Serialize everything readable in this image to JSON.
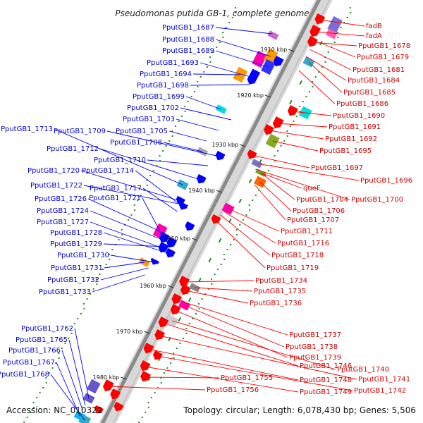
{
  "title": "Pseudomonas putida GB-1, complete genome",
  "footer": {
    "accession": "Accession: NC_010322",
    "topology": "Topology: circular; Length: 6,078,430 bp; Genes: 5,506"
  },
  "ticks": [
    "1910 kbp",
    "1920 kbp",
    "1930 kbp",
    "1940 kbp",
    "1950 kbp",
    "1960 kbp",
    "1970 kbp",
    "1980 kbp"
  ],
  "left_labels": [
    "PputGB1_1687",
    "PputGB1_1688",
    "PputGB1_1689",
    "PputGB1_1693",
    "PputGB1_1694",
    "PputGB1_1698",
    "PputGB1_1699",
    "PputGB1_1702",
    "PputGB1_1703",
    "PputGB1_1713",
    "PputGB1_1709",
    "PputGB1_1705",
    "PputGB1_1708",
    "PputGB1_1712",
    "PputGB1_1710",
    "PputGB1_1720",
    "PputGB1_1714",
    "PputGB1_1722",
    "PputGB1_1717",
    "PputGB1_1726",
    "PputGB1_1721",
    "PputGB1_1724",
    "PputGB1_1727",
    "PputGB1_1728",
    "PputGB1_1729",
    "PputGB1_1730",
    "PputGB1_1731",
    "PputGB1_1732",
    "PputGB1_1733",
    "PputGB1_1762",
    "PputGB1_1765",
    "PputGB1_1766",
    "PputGB1_1767",
    "PputGB1_1768"
  ],
  "right_labels": [
    "fadB",
    "fadA",
    "PputGB1_1678",
    "PputGB1_1679",
    "PputGB1_1681",
    "PputGB1_1684",
    "PputGB1_1685",
    "PputGB1_1686",
    "PputGB1_1690",
    "PputGB1_1691",
    "PputGB1_1692",
    "PputGB1_1695",
    "PputGB1_1697",
    "PputGB1_1696",
    "queF",
    "PputGB1_1704",
    "PputGB1_1700",
    "PputGB1_1706",
    "PputGB1_1707",
    "PputGB1_1711",
    "PputGB1_1716",
    "PputGB1_1718",
    "PputGB1_1719",
    "PputGB1_1734",
    "PputGB1_1735",
    "PputGB1_1736",
    "PputGB1_1737",
    "PputGB1_1738",
    "PputGB1_1739",
    "PputGB1_1740",
    "PputGB1_1746",
    "PputGB1_1741",
    "PputGB1_1748",
    "PputGB1_1742",
    "PputGB1_1749",
    "PputGB1_1755",
    "PputGB1_1756"
  ],
  "colors": {
    "forward_genes": "#0000ff",
    "reverse_genes": "#ff0000",
    "backbone": "#888888",
    "gc_dots": "#228b22",
    "left_label_text": "#0000cc",
    "right_label_text": "#cc0000"
  }
}
